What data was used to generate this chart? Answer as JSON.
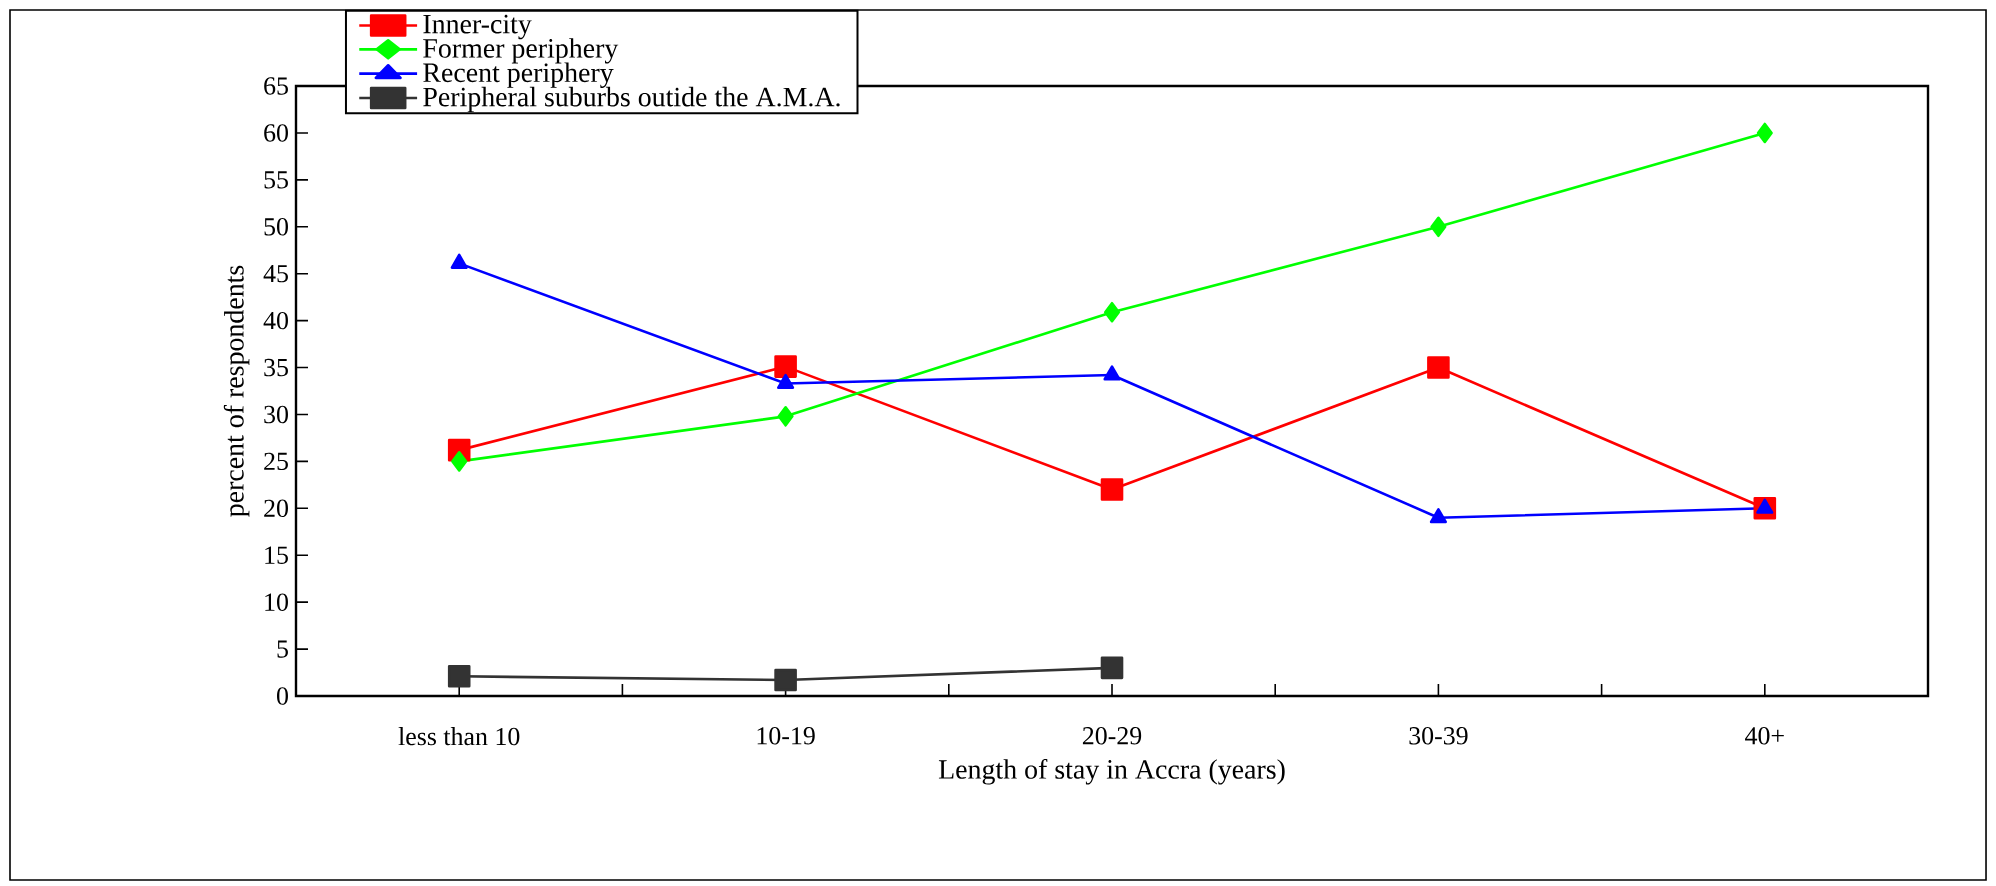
{
  "chart_data": {
    "type": "line",
    "xlabel": "Length of stay in Accra (years)",
    "ylabel": "percent of respondents",
    "categories": [
      "less than 10",
      "10-19",
      "20-29",
      "30-39",
      "40+"
    ],
    "ylim": [
      0,
      65
    ],
    "yticks": [
      0,
      5,
      10,
      15,
      20,
      25,
      30,
      35,
      40,
      45,
      50,
      55,
      60,
      65
    ],
    "grid": false,
    "legend": "top left",
    "line_style": "solid",
    "series": [
      {
        "name": "Inner-city",
        "color": "#ff0000",
        "marker": "square",
        "values": [
          26.2,
          35.1,
          22,
          35,
          20
        ]
      },
      {
        "name": "Former periphery",
        "color": "#00ff00",
        "marker": "diamond",
        "values": [
          25,
          29.8,
          40.9,
          50,
          60
        ]
      },
      {
        "name": "Recent periphery",
        "color": "#0000ff",
        "marker": "triangle",
        "values": [
          46.1,
          33.3,
          34.2,
          19,
          20
        ]
      },
      {
        "name": "Peripheral suburbs outide the A.M.A.",
        "color": "#333333",
        "marker": "square",
        "values": [
          2.1,
          1.7,
          3,
          null,
          null
        ]
      }
    ]
  }
}
